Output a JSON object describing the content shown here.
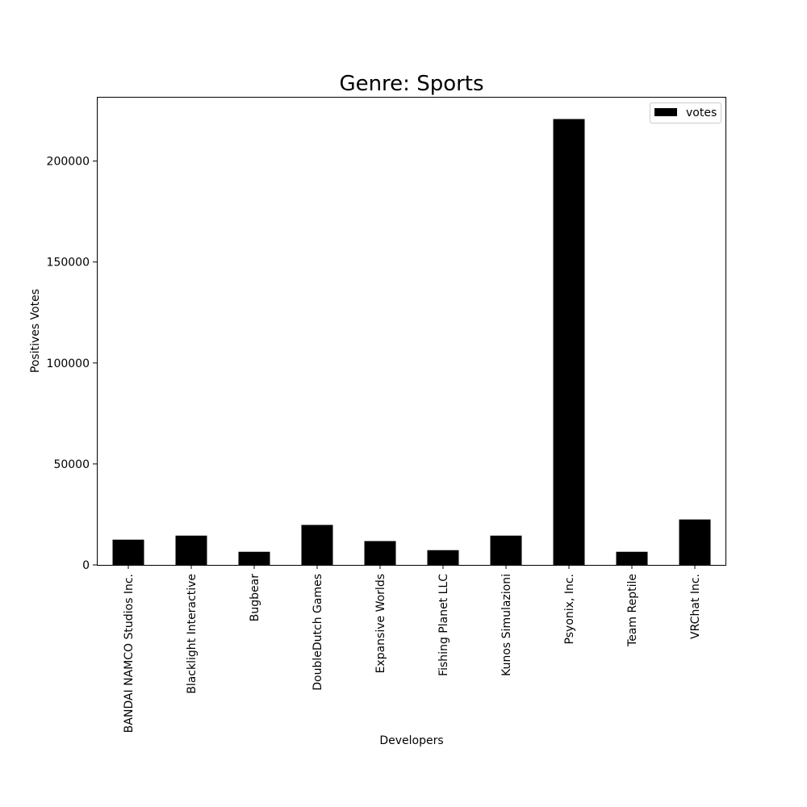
{
  "chart_data": {
    "type": "bar",
    "title": "Genre: Sports",
    "xlabel": "Developers",
    "ylabel": "Positives Votes",
    "categories": [
      "BANDAI NAMCO Studios Inc.",
      "Blacklight Interactive",
      "Bugbear",
      "DoubleDutch Games",
      "Expansive Worlds",
      "Fishing Planet LLC",
      "Kunos Simulazioni",
      "Psyonix, Inc.",
      "Team Reptile",
      "VRChat Inc."
    ],
    "series": [
      {
        "name": "votes",
        "color": "#000000",
        "values": [
          12500,
          14500,
          6500,
          19800,
          11800,
          7300,
          14500,
          220800,
          6500,
          22500
        ]
      }
    ],
    "ylim": [
      0,
      231800
    ],
    "yticks": [
      0,
      50000,
      100000,
      150000,
      200000
    ],
    "legend_position": "top-right",
    "grid": false
  }
}
